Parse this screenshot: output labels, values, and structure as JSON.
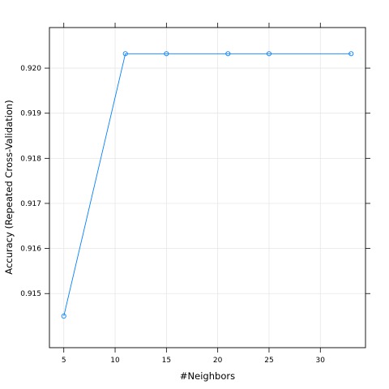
{
  "chart_data": {
    "type": "line",
    "title": "",
    "xlabel": "#Neighbors",
    "ylabel": "Accuracy (Repeated Cross-Validation)",
    "x": [
      5,
      11,
      15,
      21,
      25,
      33
    ],
    "series": [
      {
        "name": "Accuracy",
        "values": [
          0.9145,
          0.92032,
          0.92032,
          0.92032,
          0.92032,
          0.92032
        ]
      }
    ],
    "xlim": [
      3.6,
      34.4
    ],
    "ylim": [
      0.9138,
      0.9209
    ],
    "xticks": [
      5,
      10,
      15,
      20,
      25,
      30
    ],
    "yticks": [
      0.915,
      0.916,
      0.917,
      0.918,
      0.919,
      0.92
    ],
    "xtick_labels": [
      "5",
      "10",
      "15",
      "20",
      "25",
      "30"
    ],
    "ytick_labels": [
      "0.915",
      "0.916",
      "0.917",
      "0.918",
      "0.919",
      "0.920"
    ],
    "grid": true,
    "colors": {
      "line": "#0080ff",
      "grid": "#e6e6e6",
      "axis": "#000000"
    }
  }
}
